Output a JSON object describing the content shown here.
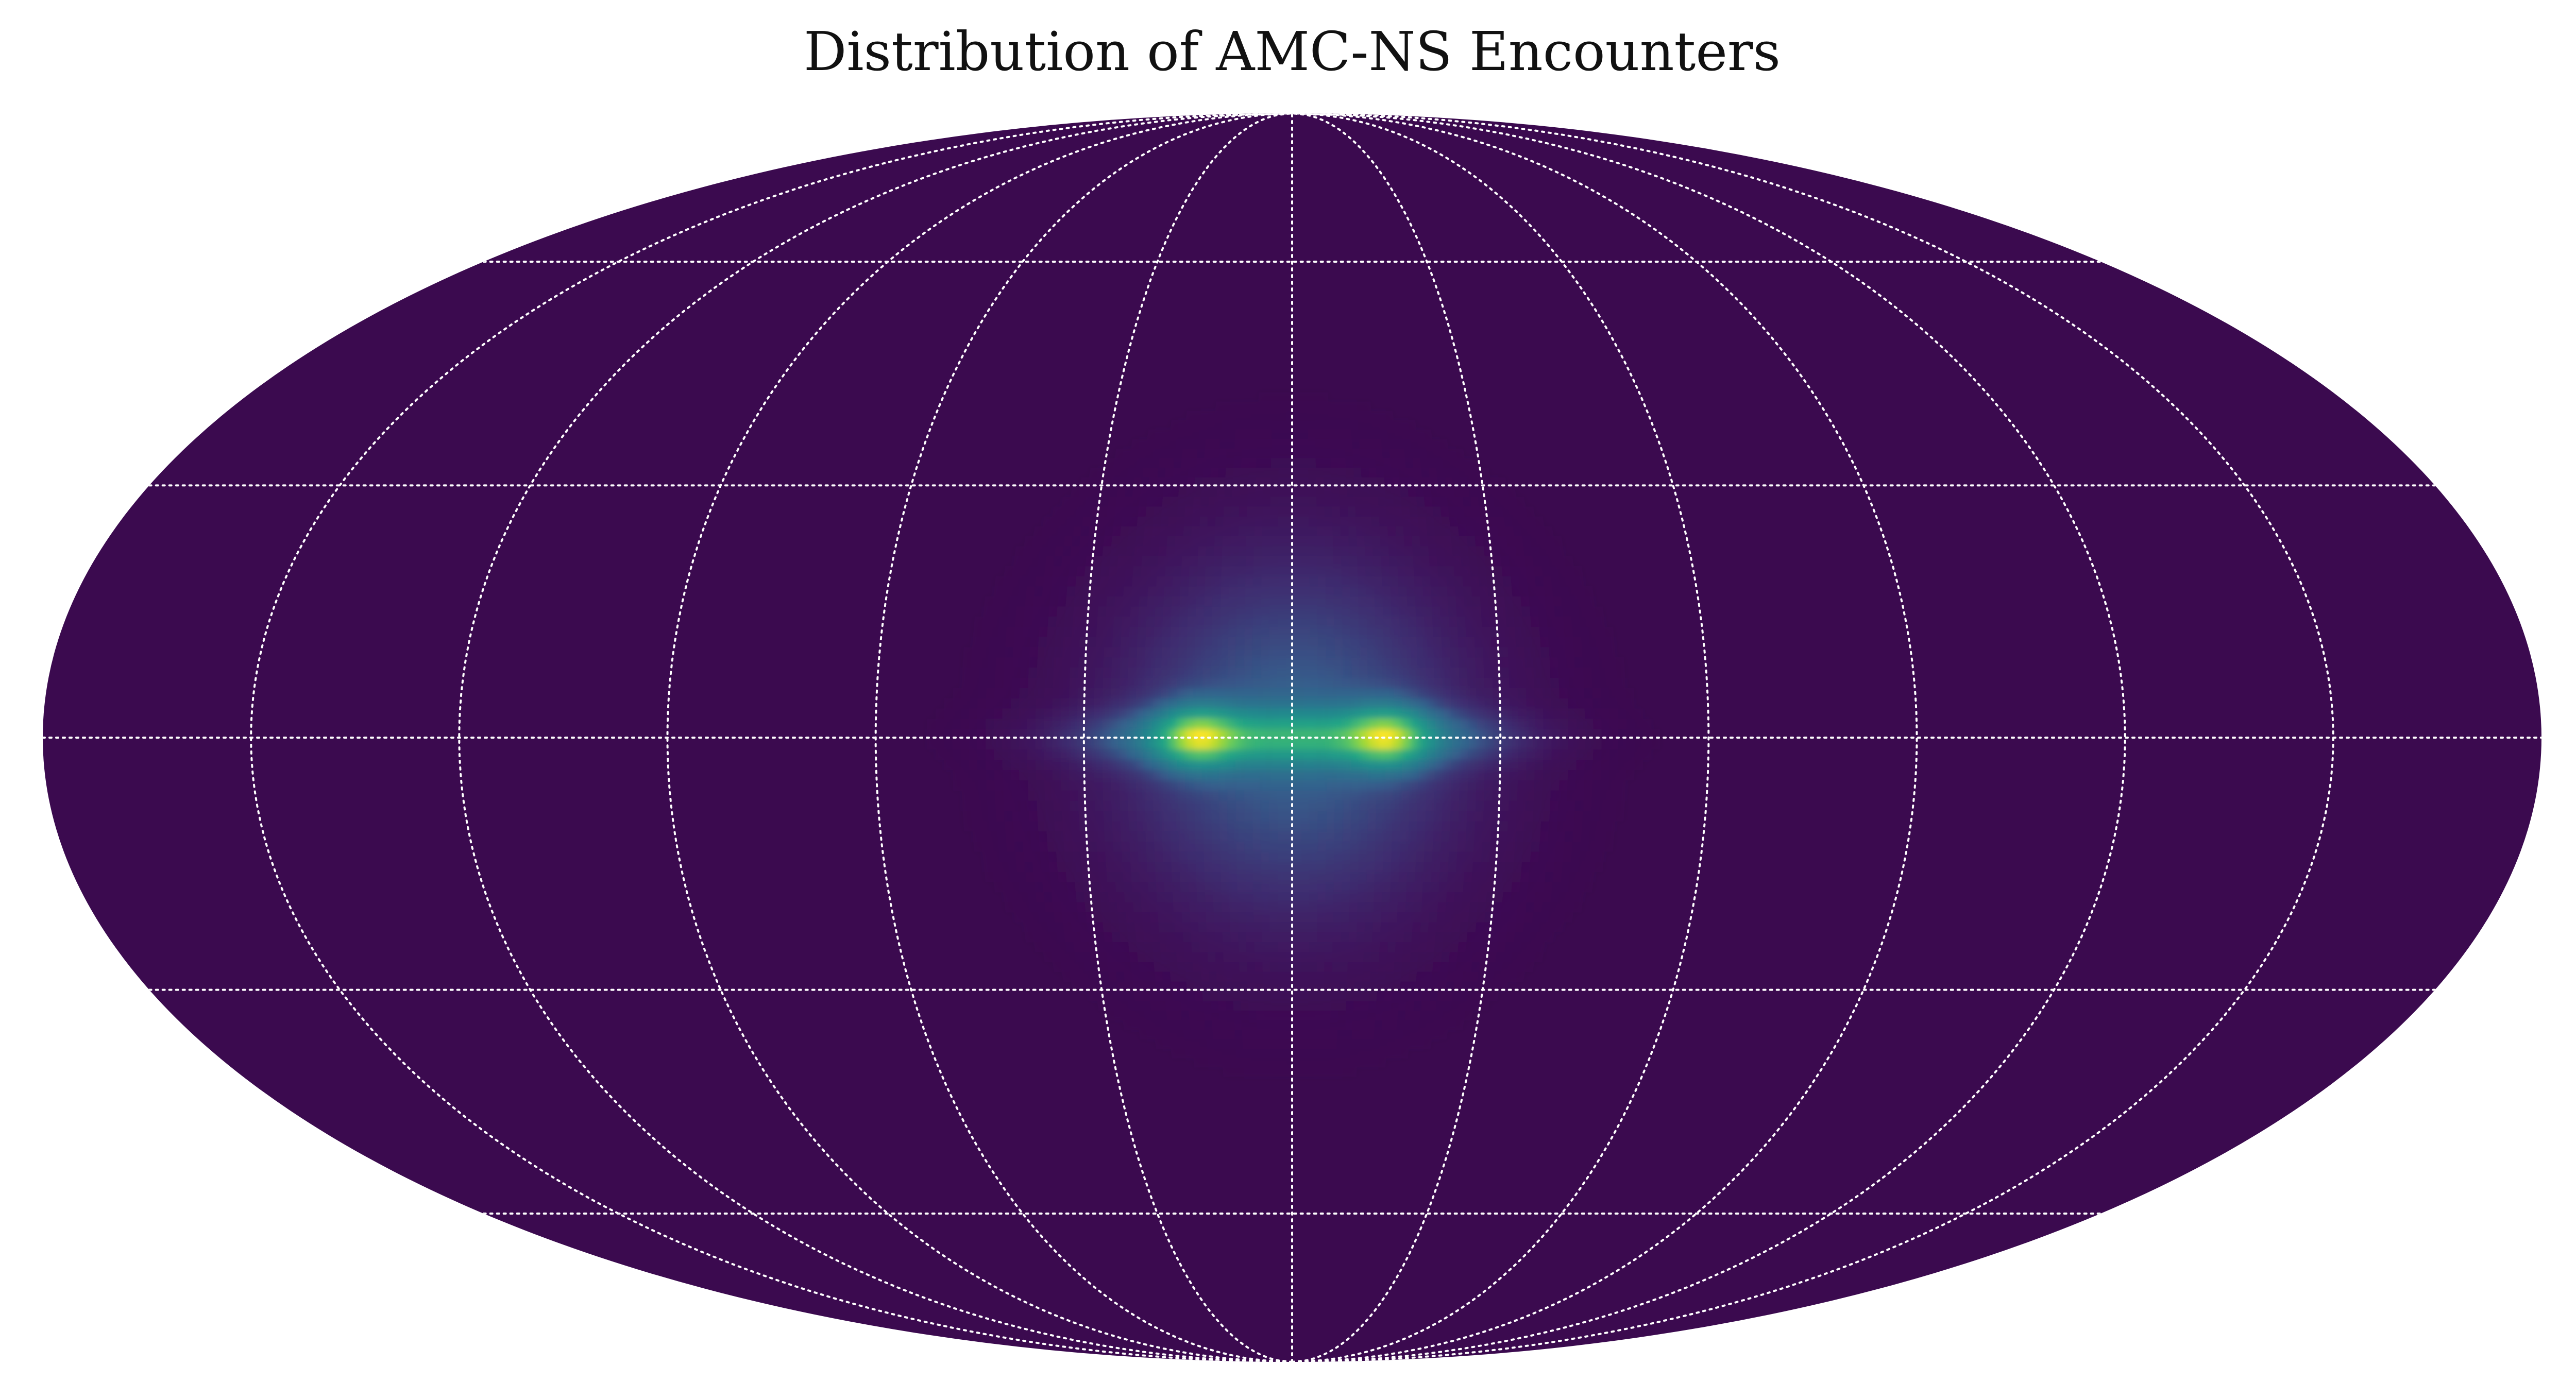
{
  "chart_data": {
    "type": "heatmap",
    "projection": "mollweide",
    "title": "Distribution of AMC-NS Encounters",
    "colormap": "viridis",
    "background_color": "#3b0a4f",
    "grid": true,
    "grid_style": "dotted",
    "grid_color": "#ffffff",
    "meridians_deg": [
      -150,
      -120,
      -90,
      -60,
      -30,
      0,
      30,
      60,
      90,
      120,
      150
    ],
    "parallels_deg": [
      -60,
      -30,
      0,
      30,
      60
    ],
    "density_components": [
      {
        "lon": 0,
        "lat": 0,
        "sigma_lon": 20,
        "sigma_lat": 17,
        "weight": 0.3
      },
      {
        "lon": 0,
        "lat": 0,
        "sigma_lon": 18,
        "sigma_lat": 2.2,
        "weight": 0.45
      },
      {
        "lon": -14,
        "lat": 0,
        "sigma_lon": 4,
        "sigma_lat": 2.5,
        "weight": 0.45
      },
      {
        "lon": 14,
        "lat": 0,
        "sigma_lon": 4,
        "sigma_lat": 2.5,
        "weight": 0.45
      }
    ]
  }
}
